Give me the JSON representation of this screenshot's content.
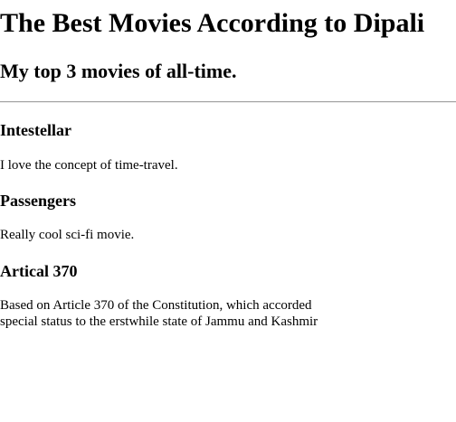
{
  "header": {
    "title": "The Best Movies According to Dipali",
    "subtitle": "My top 3 movies of all-time."
  },
  "movies": [
    {
      "title": "Intestellar",
      "description": "I love the concept of time-travel."
    },
    {
      "title": "Passengers",
      "description": "Really cool sci-fi movie."
    },
    {
      "title": "Artical 370",
      "description": "Based on Article 370 of the Constitution, which accorded special status to the erstwhile state of Jammu and Kashmir"
    }
  ]
}
